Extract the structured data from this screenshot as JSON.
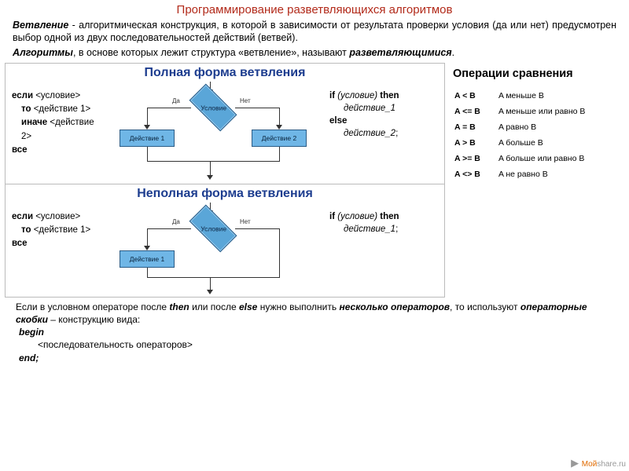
{
  "title": {
    "text": "Программирование разветвляющихся алгоритмов",
    "color": "#b22a1a"
  },
  "intro": {
    "p1_bi": "Ветвление",
    "p1_rest": " - алгоритмическая конструкция, в которой в зависимости от результата проверки условия (да или нет) предусмотрен выбор одной из двух последовательностей действий (ветвей).",
    "p2_bi": "Алгоритмы",
    "p2_mid": ", в основе которых лежит структура «ветвление», называют ",
    "p2_bi2": "разветвляющимися",
    "p2_end": "."
  },
  "full": {
    "title": "Полная форма ветвления",
    "left": {
      "l1a": "если",
      "l1b": " <условие>",
      "l2a": "то",
      "l2b": " <действие 1>",
      "l3a": "иначе",
      "l3b": " <действие 2>",
      "l4": "все"
    },
    "right": {
      "l1a": "if ",
      "l1b": "(условие) ",
      "l1c": "then",
      "l2": "действие_1",
      "l3": "else",
      "l4": "действие_2",
      "l4s": ";"
    },
    "diag": {
      "cond": "Условие",
      "yes": "Да",
      "no": "Нет",
      "a1": "Действие 1",
      "a2": "Действие 2",
      "box_fill": "#6fb6e6",
      "box_border": "#2a5b85",
      "diamond_fill": "#5aa6d8"
    }
  },
  "partial": {
    "title": "Неполная форма ветвления",
    "left": {
      "l1a": "если",
      "l1b": " <условие>",
      "l2a": "то",
      "l2b": " <действие 1>",
      "l3": "все"
    },
    "right": {
      "l1a": "if ",
      "l1b": "(условие) ",
      "l1c": "then",
      "l2": "действие_1",
      "l2s": ";"
    },
    "diag": {
      "cond": "Условие",
      "yes": "Да",
      "no": "Нет",
      "a1": "Действие 1"
    }
  },
  "ops": {
    "title": "Операции сравнения",
    "rows": [
      {
        "op": "A < B",
        "desc": "A меньше B"
      },
      {
        "op": "A <= B",
        "desc": "A меньше или равно B"
      },
      {
        "op": "A = B",
        "desc": "A равно B"
      },
      {
        "op": "A > B",
        "desc": "A больше B"
      },
      {
        "op": "A >= B",
        "desc": "A больше или равно B"
      },
      {
        "op": "A <> B",
        "desc": "A не равно B"
      }
    ]
  },
  "footnote": {
    "t1": "Если в условном операторе после ",
    "then": "then",
    "t2": " или после ",
    "else": "else",
    "t3": " нужно выполнить ",
    "several": "несколько операторов",
    "t4": ", то используют ",
    "brackets": "операторные скобки",
    "t5": " – конструкцию вида:",
    "c1": "begin",
    "c2": "<последовательность операторов>",
    "c3": "end;"
  },
  "watermark": {
    "a": "Мой",
    "b": "share.ru"
  }
}
